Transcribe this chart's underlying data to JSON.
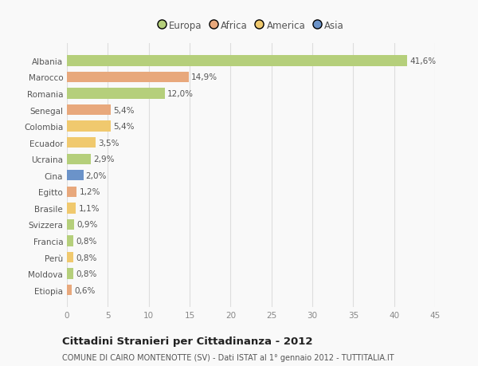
{
  "countries": [
    "Albania",
    "Marocco",
    "Romania",
    "Senegal",
    "Colombia",
    "Ecuador",
    "Ucraina",
    "Cina",
    "Egitto",
    "Brasile",
    "Svizzera",
    "Francia",
    "Perù",
    "Moldova",
    "Etiopia"
  ],
  "values": [
    41.6,
    14.9,
    12.0,
    5.4,
    5.4,
    3.5,
    2.9,
    2.0,
    1.2,
    1.1,
    0.9,
    0.8,
    0.8,
    0.8,
    0.6
  ],
  "labels": [
    "41,6%",
    "14,9%",
    "12,0%",
    "5,4%",
    "5,4%",
    "3,5%",
    "2,9%",
    "2,0%",
    "1,2%",
    "1,1%",
    "0,9%",
    "0,8%",
    "0,8%",
    "0,8%",
    "0,6%"
  ],
  "colors": [
    "#b5cf7b",
    "#e8a87c",
    "#b5cf7b",
    "#e8a87c",
    "#f0c96e",
    "#f0c96e",
    "#b5cf7b",
    "#6b93c9",
    "#e8a87c",
    "#f0c96e",
    "#b5cf7b",
    "#b5cf7b",
    "#f0c96e",
    "#b5cf7b",
    "#e8a87c"
  ],
  "legend_labels": [
    "Europa",
    "Africa",
    "America",
    "Asia"
  ],
  "legend_colors": [
    "#b5cf7b",
    "#e8a87c",
    "#f0c96e",
    "#6b93c9"
  ],
  "title": "Cittadini Stranieri per Cittadinanza - 2012",
  "subtitle": "COMUNE DI CAIRO MONTENOTTE (SV) - Dati ISTAT al 1° gennaio 2012 - TUTTITALIA.IT",
  "xlim": [
    0,
    45
  ],
  "xticks": [
    0,
    5,
    10,
    15,
    20,
    25,
    30,
    35,
    40,
    45
  ],
  "background_color": "#f9f9f9",
  "grid_color": "#dddddd",
  "bar_height": 0.65,
  "label_fontsize": 7.5,
  "tick_fontsize": 7.5,
  "legend_fontsize": 8.5,
  "title_fontsize": 9.5,
  "subtitle_fontsize": 7.0
}
